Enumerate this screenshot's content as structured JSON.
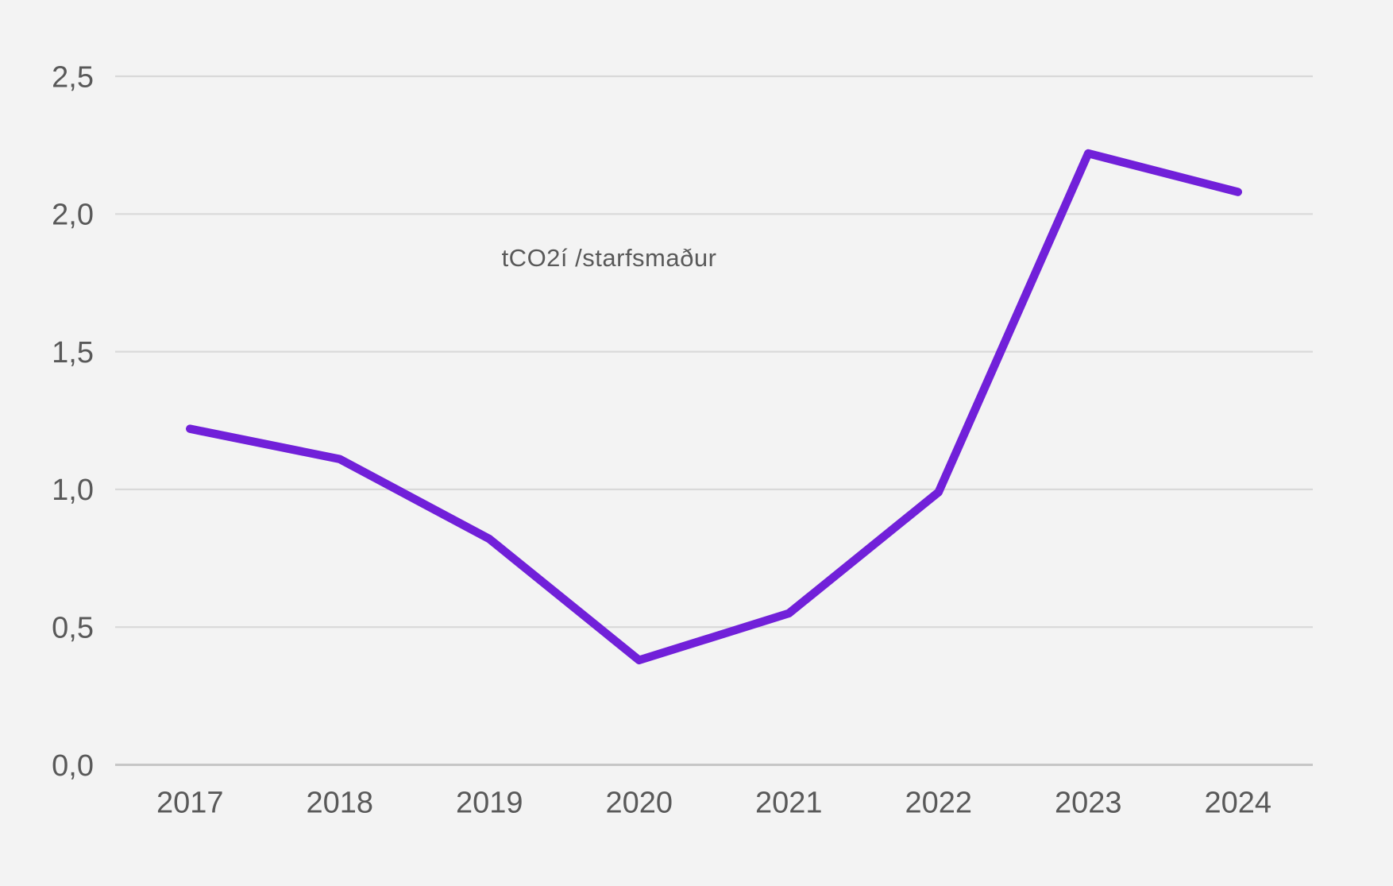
{
  "chart_data": {
    "type": "line",
    "title": "tCO2í /starfsmaður",
    "categories": [
      "2017",
      "2018",
      "2019",
      "2020",
      "2021",
      "2022",
      "2023",
      "2024"
    ],
    "series": [
      {
        "name": "tCO2í /starfsmaður",
        "values": [
          1.22,
          1.11,
          0.82,
          0.38,
          0.55,
          0.99,
          2.22,
          2.08
        ]
      }
    ],
    "xlabel": "",
    "ylabel": "",
    "ylim": [
      0,
      2.5
    ],
    "yticks": [
      0,
      0.5,
      1.0,
      1.5,
      2.0,
      2.5
    ],
    "ytick_labels": [
      "0,0",
      "0,5",
      "1,0",
      "1,5",
      "2,0",
      "2,5"
    ],
    "decimal_separator": ",",
    "grid": "horizontal",
    "legend": "none",
    "markers": "none",
    "title_position": "inside-plot-upper-left-of-center",
    "colors": {
      "background": "#f3f3f3",
      "gridline": "#d9d9d9",
      "zero_gridline": "#c6c6c6",
      "text": "#595959",
      "line": "#7120d9"
    }
  }
}
